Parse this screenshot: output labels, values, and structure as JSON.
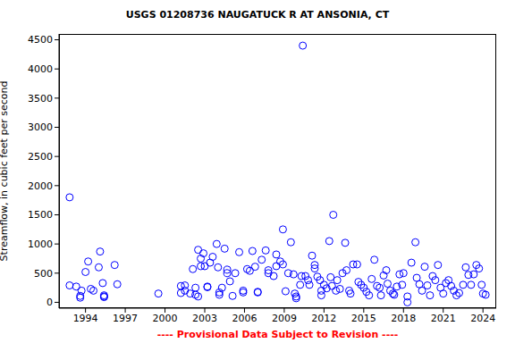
{
  "chart_data": {
    "type": "scatter",
    "title": "USGS 01208736 NAUGATUCK R AT ANSONIA, CT",
    "y_label": "Streamflow, in cubic feet per second",
    "footer": "---- Provisional Data Subject to Revision ----",
    "x": [
      1992.8,
      1992.8,
      1993.3,
      1993.6,
      1993.6,
      1993.7,
      1994.0,
      1994.2,
      1994.4,
      1994.6,
      1995.0,
      1995.1,
      1995.3,
      1995.4,
      1995.4,
      1995.4,
      1996.2,
      1996.4,
      1999.5,
      2001.2,
      2001.2,
      2001.5,
      2001.5,
      2001.9,
      2002.1,
      2002.3,
      2002.3,
      2002.5,
      2002.5,
      2002.7,
      2002.7,
      2002.9,
      2003.0,
      2003.2,
      2003.2,
      2003.4,
      2003.6,
      2003.9,
      2004.0,
      2004.1,
      2004.1,
      2004.3,
      2004.5,
      2004.7,
      2004.7,
      2004.9,
      2005.1,
      2005.3,
      2005.6,
      2005.9,
      2005.9,
      2006.2,
      2006.4,
      2006.6,
      2006.8,
      2007.0,
      2007.0,
      2007.3,
      2007.6,
      2007.8,
      2007.8,
      2008.2,
      2008.4,
      2008.4,
      2008.7,
      2008.9,
      2008.9,
      2009.1,
      2009.3,
      2009.5,
      2009.7,
      2009.8,
      2009.9,
      2009.9,
      2010.2,
      2010.3,
      2010.4,
      2010.6,
      2010.8,
      2010.9,
      2011.1,
      2011.3,
      2011.3,
      2011.5,
      2011.7,
      2011.8,
      2011.8,
      2012.0,
      2012.2,
      2012.4,
      2012.5,
      2012.6,
      2012.7,
      2012.9,
      2013.0,
      2013.2,
      2013.4,
      2013.6,
      2013.7,
      2013.9,
      2014.0,
      2014.2,
      2014.5,
      2014.6,
      2014.8,
      2015.0,
      2015.2,
      2015.4,
      2015.6,
      2015.8,
      2016.0,
      2016.2,
      2016.3,
      2016.5,
      2016.7,
      2016.8,
      2017.0,
      2017.2,
      2017.3,
      2017.5,
      2017.7,
      2017.9,
      2018.0,
      2018.3,
      2018.3,
      2018.6,
      2018.9,
      2019.0,
      2019.2,
      2019.4,
      2019.6,
      2019.8,
      2020.0,
      2020.2,
      2020.4,
      2020.6,
      2020.8,
      2021.0,
      2021.2,
      2021.4,
      2021.6,
      2021.8,
      2022.0,
      2022.2,
      2022.5,
      2022.7,
      2022.9,
      2023.1,
      2023.3,
      2023.5,
      2023.7,
      2023.9,
      2024.0,
      2024.2
    ],
    "values": [
      1800,
      290,
      270,
      110,
      80,
      200,
      520,
      700,
      230,
      200,
      600,
      870,
      330,
      120,
      100,
      90,
      640,
      310,
      150,
      280,
      160,
      290,
      200,
      150,
      570,
      250,
      130,
      900,
      100,
      750,
      620,
      840,
      620,
      270,
      260,
      680,
      780,
      1000,
      600,
      170,
      130,
      250,
      920,
      500,
      560,
      360,
      110,
      500,
      860,
      170,
      200,
      570,
      540,
      880,
      610,
      180,
      170,
      730,
      890,
      550,
      500,
      450,
      820,
      620,
      700,
      1250,
      650,
      190,
      500,
      1030,
      480,
      150,
      100,
      70,
      300,
      450,
      4400,
      450,
      380,
      300,
      800,
      640,
      580,
      440,
      380,
      200,
      120,
      300,
      240,
      1050,
      430,
      280,
      1500,
      200,
      380,
      230,
      500,
      1020,
      550,
      200,
      150,
      650,
      650,
      350,
      300,
      250,
      180,
      120,
      400,
      730,
      280,
      250,
      120,
      460,
      550,
      320,
      200,
      150,
      130,
      270,
      480,
      300,
      500,
      100,
      0,
      680,
      1030,
      420,
      310,
      200,
      610,
      290,
      120,
      450,
      380,
      640,
      250,
      150,
      330,
      380,
      280,
      200,
      120,
      160,
      300,
      600,
      470,
      300,
      480,
      640,
      580,
      300,
      150,
      130
    ],
    "color": "#0000ff",
    "marker": "open_circle",
    "xlim": [
      1992,
      2025
    ],
    "xticks": [
      1994,
      1997,
      2000,
      2003,
      2006,
      2009,
      2012,
      2015,
      2018,
      2021,
      2024
    ],
    "ylim": [
      -100,
      4600
    ],
    "yticks": [
      0,
      500,
      1000,
      1500,
      2000,
      2500,
      3000,
      3500,
      4000,
      4500
    ],
    "grid": false
  }
}
